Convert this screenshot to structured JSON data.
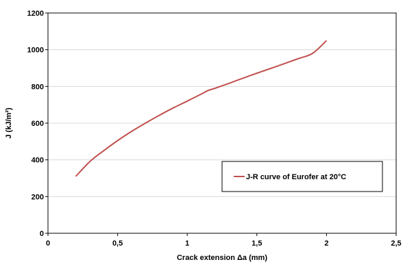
{
  "chart_data": {
    "type": "line",
    "title": "",
    "xlabel": "Crack extension Δa (mm)",
    "ylabel": "J (kJ/m²)",
    "xlim": [
      0,
      2.5
    ],
    "ylim": [
      0,
      1200
    ],
    "x_ticks": [
      0,
      0.5,
      1,
      1.5,
      2,
      2.5
    ],
    "x_tick_labels": [
      "0",
      "0,5",
      "1",
      "1,5",
      "2",
      "2,5"
    ],
    "y_ticks": [
      0,
      200,
      400,
      600,
      800,
      1000,
      1200
    ],
    "y_tick_labels": [
      "0",
      "200",
      "400",
      "600",
      "800",
      "1000",
      "1200"
    ],
    "grid": "horizontal",
    "legend_position": "center-right",
    "series": [
      {
        "name": "J-R curve of Eurofer at 20°C",
        "color": "#c0504d",
        "x": [
          0.2,
          0.3,
          0.4,
          0.5,
          0.6,
          0.7,
          0.8,
          0.9,
          1.0,
          1.1,
          1.15,
          1.2,
          1.3,
          1.4,
          1.5,
          1.6,
          1.7,
          1.8,
          1.9,
          2.0
        ],
        "y": [
          310,
          390,
          450,
          505,
          555,
          600,
          643,
          683,
          720,
          758,
          778,
          790,
          817,
          845,
          872,
          898,
          925,
          952,
          980,
          1050
        ]
      }
    ]
  }
}
